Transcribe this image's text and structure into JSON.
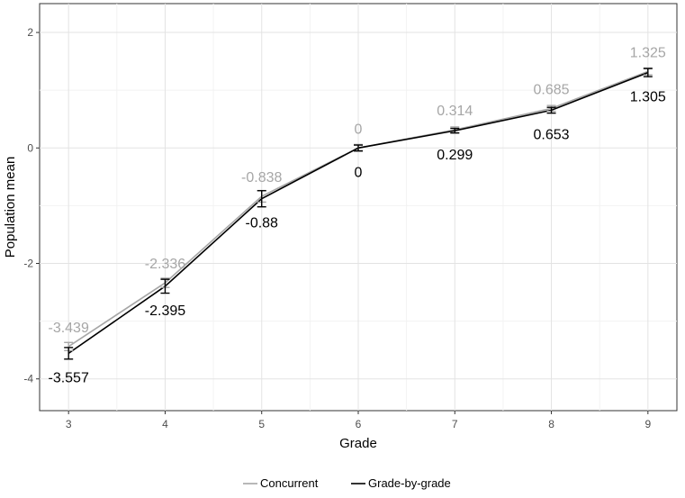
{
  "chart_data": {
    "type": "line",
    "xlabel": "Grade",
    "ylabel": "Population mean",
    "x": [
      3,
      4,
      5,
      6,
      7,
      8,
      9
    ],
    "xlim": [
      2.7,
      9.3
    ],
    "ylim": [
      -4.55,
      2.5
    ],
    "x_ticks": [
      "3",
      "4",
      "5",
      "6",
      "7",
      "8",
      "9"
    ],
    "y_ticks": [
      {
        "value": 2,
        "label": "2"
      },
      {
        "value": 0,
        "label": "0"
      },
      {
        "value": -2,
        "label": "-2"
      },
      {
        "value": -4,
        "label": "-4"
      }
    ],
    "grid": true,
    "legend_position": "bottom",
    "series": [
      {
        "name": "Concurrent",
        "color": "#a6a6a6",
        "values": [
          -3.439,
          -2.336,
          -0.838,
          0,
          0.314,
          0.685,
          1.325
        ],
        "labels": [
          "-3.439",
          "-2.336",
          "-0.838",
          "0",
          "0.314",
          "0.685",
          "1.325"
        ],
        "err": [
          0.07,
          0.08,
          0.1,
          0.06,
          0.05,
          0.05,
          0.06
        ]
      },
      {
        "name": "Grade-by-grade",
        "color": "#000000",
        "values": [
          -3.557,
          -2.395,
          -0.88,
          0,
          0.299,
          0.653,
          1.305
        ],
        "labels": [
          "-3.557",
          "-2.395",
          "-0.88",
          "0",
          "0.299",
          "0.653",
          "1.305"
        ],
        "err": [
          0.1,
          0.12,
          0.14,
          0.05,
          0.04,
          0.05,
          0.07
        ]
      }
    ]
  }
}
